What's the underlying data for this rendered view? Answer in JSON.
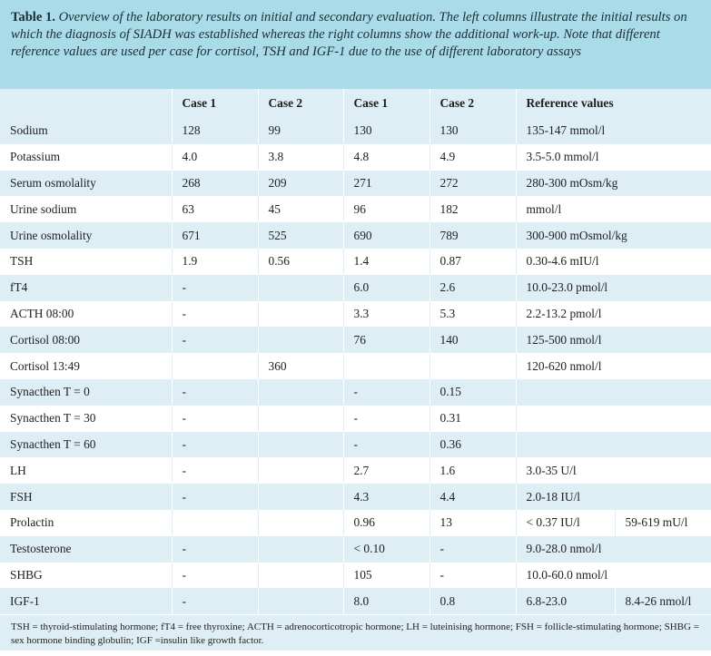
{
  "caption": {
    "label": "Table 1.",
    "text": " Overview of the laboratory results on initial and secondary evaluation. The left columns illustrate the initial results on which the diagnosis of SIADH was established whereas the right columns show the additional work-up. Note that different reference values are used per case for cortisol, TSH and IGF-1 due to the use of different laboratory assays"
  },
  "headers": [
    "",
    "Case 1",
    "Case 2",
    "Case 1",
    "Case 2",
    "Reference values"
  ],
  "rows": [
    {
      "label": "Sodium",
      "cells": [
        "128",
        "99",
        "130",
        "130"
      ],
      "ref": "135-147 mmol/l",
      "ref2": ""
    },
    {
      "label": "Potassium",
      "cells": [
        "4.0",
        "3.8",
        "4.8",
        "4.9"
      ],
      "ref": "3.5-5.0 mmol/l",
      "ref2": ""
    },
    {
      "label": "Serum osmolality",
      "cells": [
        "268",
        "209",
        "271",
        "272"
      ],
      "ref": "280-300 mOsm/kg",
      "ref2": ""
    },
    {
      "label": "Urine sodium",
      "cells": [
        "63",
        "45",
        "96",
        "182"
      ],
      "ref": "mmol/l",
      "ref2": ""
    },
    {
      "label": "Urine osmolality",
      "cells": [
        "671",
        "525",
        "690",
        "789"
      ],
      "ref": "300-900 mOsmol/kg",
      "ref2": ""
    },
    {
      "label": "TSH",
      "cells": [
        "1.9",
        "0.56",
        "1.4",
        "0.87"
      ],
      "ref": "0.30-4.6 mIU/l",
      "ref2": ""
    },
    {
      "label": "fT4",
      "cells": [
        "-",
        "",
        "6.0",
        "2.6"
      ],
      "ref": "10.0-23.0 pmol/l",
      "ref2": ""
    },
    {
      "label": "ACTH 08:00",
      "cells": [
        "-",
        "",
        "3.3",
        "5.3"
      ],
      "ref": "2.2-13.2 pmol/l",
      "ref2": ""
    },
    {
      "label": "Cortisol 08:00",
      "cells": [
        "-",
        "",
        "76",
        "140"
      ],
      "ref": "125-500 nmol/l",
      "ref2": ""
    },
    {
      "label": "Cortisol 13:49",
      "cells": [
        "",
        "360",
        "",
        ""
      ],
      "ref": "120-620 nmol/l",
      "ref2": ""
    },
    {
      "label": "Synacthen T = 0",
      "cells": [
        "-",
        "",
        "-",
        "0.15"
      ],
      "ref": "",
      "ref2": ""
    },
    {
      "label": "Synacthen T = 30",
      "cells": [
        "-",
        "",
        "-",
        "0.31"
      ],
      "ref": "",
      "ref2": ""
    },
    {
      "label": "Synacthen T = 60",
      "cells": [
        "-",
        "",
        "-",
        "0.36"
      ],
      "ref": "",
      "ref2": ""
    },
    {
      "label": "LH",
      "cells": [
        "-",
        "",
        "2.7",
        "1.6"
      ],
      "ref": "3.0-35 U/l",
      "ref2": ""
    },
    {
      "label": "FSH",
      "cells": [
        "-",
        "",
        "4.3",
        "4.4"
      ],
      "ref": "2.0-18 IU/l",
      "ref2": ""
    },
    {
      "label": "Prolactin",
      "cells": [
        "",
        "",
        "0.96",
        "13"
      ],
      "ref": "< 0.37 IU/l",
      "ref2": "59-619 mU/l"
    },
    {
      "label": "Testosterone",
      "cells": [
        "-",
        "",
        "< 0.10",
        "-"
      ],
      "ref": "9.0-28.0 nmol/l",
      "ref2": ""
    },
    {
      "label": "SHBG",
      "cells": [
        "-",
        "",
        "105",
        "-"
      ],
      "ref": "10.0-60.0 nmol/l",
      "ref2": ""
    },
    {
      "label": "IGF-1",
      "cells": [
        "-",
        "",
        "8.0",
        "0.8"
      ],
      "ref": "6.8-23.0",
      "ref2": "8.4-26 nmol/l"
    }
  ],
  "footnote": "TSH = thyroid-stimulating hormone; fT4 = free thyroxine; ACTH = adrenocorticotropic hormone; LH = luteinising hormone; FSH = follicle-stimulating hormone; SHBG = sex hormone binding globulin; IGF =insulin like growth factor."
}
